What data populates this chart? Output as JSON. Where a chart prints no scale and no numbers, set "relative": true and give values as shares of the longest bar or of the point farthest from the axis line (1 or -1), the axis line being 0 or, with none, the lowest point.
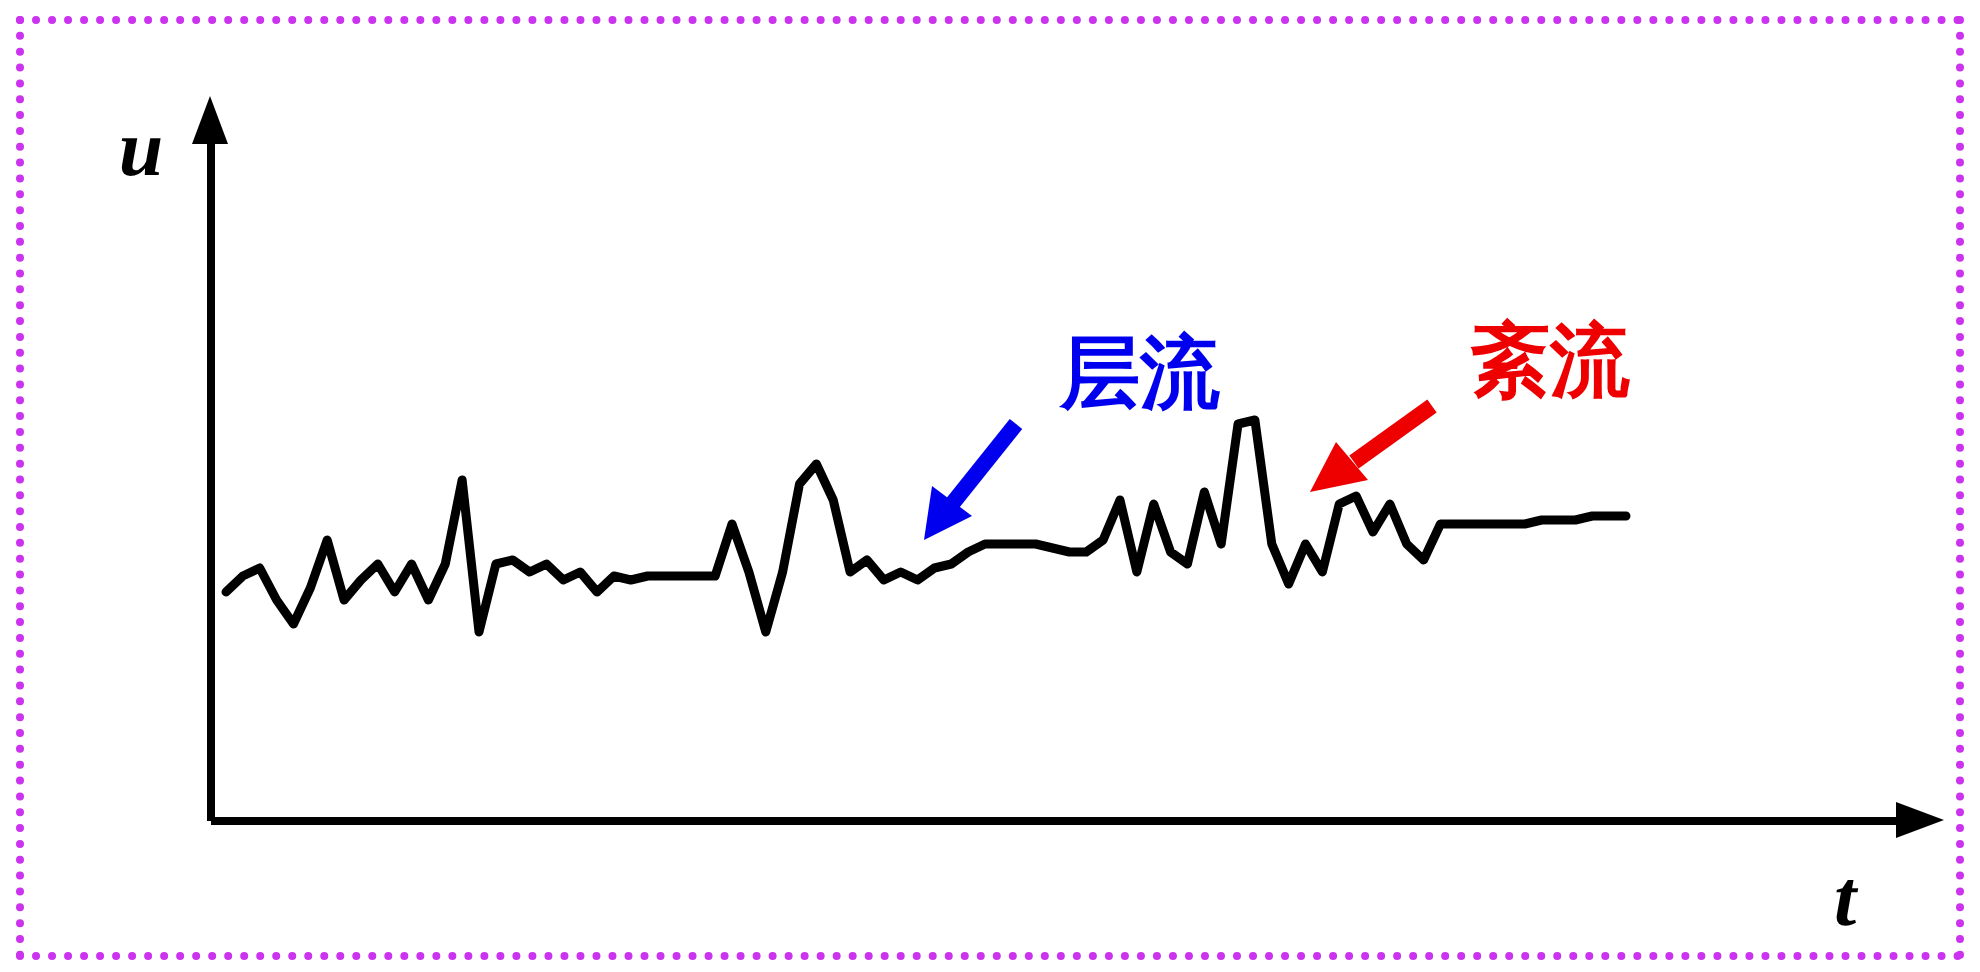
{
  "chart_data": {
    "type": "line",
    "relative": true,
    "xlabel": "t",
    "ylabel": "u",
    "grid": false,
    "marker": "none",
    "line_style": "solid",
    "annotations": [
      "层流",
      "紊流"
    ],
    "categories": [
      null,
      null,
      null,
      null,
      null,
      null,
      null,
      null,
      null,
      null,
      null,
      null,
      null,
      null,
      null,
      null,
      null,
      null,
      null,
      null,
      null,
      null,
      null,
      null,
      null,
      null,
      null,
      null,
      null,
      null,
      null,
      null,
      null,
      null,
      null,
      null,
      null,
      null,
      null,
      null,
      null,
      null,
      null,
      null,
      null,
      null,
      null,
      null,
      null,
      null,
      null,
      null,
      null,
      null,
      null,
      null,
      null,
      null,
      null,
      null,
      null,
      null,
      null,
      null,
      null,
      null,
      null,
      null,
      null,
      null,
      null,
      null,
      null,
      null,
      null,
      null,
      null,
      null,
      null,
      null,
      null,
      null,
      null,
      null
    ],
    "series": [
      {
        "color": "#000000",
        "values": [
          0.57,
          0.61,
          0.63,
          0.55,
          0.49,
          0.58,
          0.7,
          0.55,
          0.6,
          0.64,
          0.57,
          0.64,
          0.55,
          0.64,
          0.85,
          0.47,
          0.64,
          0.65,
          0.62,
          0.64,
          0.6,
          0.62,
          0.57,
          0.61,
          0.6,
          0.61,
          0.61,
          0.61,
          0.61,
          0.61,
          0.74,
          0.62,
          0.47,
          0.62,
          0.84,
          0.89,
          0.8,
          0.62,
          0.65,
          0.6,
          0.62,
          0.6,
          0.63,
          0.64,
          0.67,
          0.69,
          0.69,
          0.69,
          0.69,
          0.68,
          0.67,
          0.67,
          0.7,
          0.8,
          0.62,
          0.79,
          0.67,
          0.64,
          0.82,
          0.69,
          0.99,
          1.0,
          0.69,
          0.59,
          0.69,
          0.62,
          0.79,
          0.81,
          0.72,
          0.79,
          0.69,
          0.65,
          0.74,
          0.74,
          0.74,
          0.74,
          0.74,
          0.74,
          0.75,
          0.75,
          0.75,
          0.76,
          0.76,
          0.76
        ]
      }
    ]
  }
}
